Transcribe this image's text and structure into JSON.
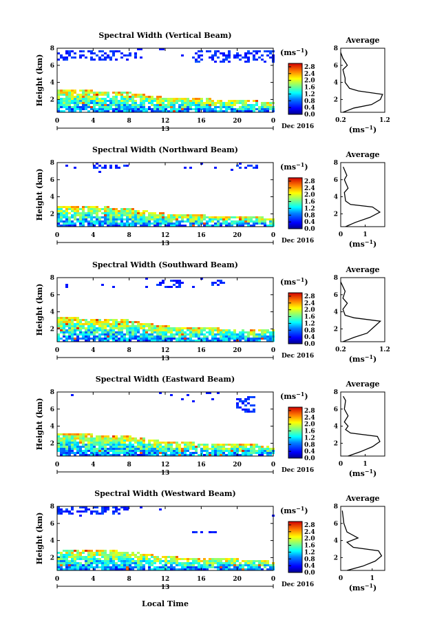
{
  "figure": {
    "time_label": "Local Time",
    "date_label": "Dec 2016",
    "day_label": "13",
    "cbar_unit": "(ms",
    "cbar_unit_exp": "−1",
    "avg_title": "Average",
    "avg_unit": "(ms",
    "avg_unit_exp": "−1"
  },
  "chart_data": [
    {
      "type": "heatmap",
      "title": "Spectral Width (Vertical Beam)",
      "ylabel": "Height (km)",
      "xlabel": "",
      "x_ticks": [
        "0",
        "4",
        "8",
        "12",
        "16",
        "20",
        "0"
      ],
      "y_ticks": [
        "2",
        "4",
        "6",
        "8"
      ],
      "xlim": [
        0,
        24
      ],
      "ylim": [
        0.5,
        8
      ],
      "colorbar": {
        "ticks": [
          "0.0",
          "0.4",
          "0.8",
          "1.2",
          "1.6",
          "2.0",
          "2.4",
          "2.8"
        ],
        "range": [
          0,
          3.0
        ]
      },
      "layer_top": [
        {
          "t": 0,
          "h": 3.0
        },
        {
          "t": 4,
          "h": 3.0
        },
        {
          "t": 8,
          "h": 2.8
        },
        {
          "t": 10,
          "h": 2.5
        },
        {
          "t": 12,
          "h": 2.2
        },
        {
          "t": 16,
          "h": 2.1
        },
        {
          "t": 20,
          "h": 1.9
        },
        {
          "t": 24,
          "h": 1.7
        }
      ],
      "upper_echo": [
        {
          "t0": 0,
          "t1": 9,
          "h0": 6.6,
          "h1": 7.8
        },
        {
          "t0": 15,
          "t1": 24,
          "h0": 6.2,
          "h1": 7.8
        }
      ],
      "average": {
        "title": "Average",
        "xlim": [
          0.2,
          1.2
        ],
        "x_ticks": [
          "0.2",
          "1.2"
        ],
        "y_ticks": [
          "2",
          "4",
          "6",
          "8"
        ],
        "profile": [
          {
            "x": 0.25,
            "y": 0.5
          },
          {
            "x": 0.5,
            "y": 1.0
          },
          {
            "x": 0.9,
            "y": 1.4
          },
          {
            "x": 1.1,
            "y": 2.0
          },
          {
            "x": 1.15,
            "y": 2.6
          },
          {
            "x": 0.6,
            "y": 3.0
          },
          {
            "x": 0.4,
            "y": 3.3
          },
          {
            "x": 0.3,
            "y": 4.0
          },
          {
            "x": 0.3,
            "y": 4.5
          },
          {
            "x": 0.25,
            "y": 5.5
          },
          {
            "x": 0.35,
            "y": 6.0
          },
          {
            "x": 0.25,
            "y": 6.8
          },
          {
            "x": 0.2,
            "y": 7.5
          }
        ]
      }
    },
    {
      "type": "heatmap",
      "title": "Spectral Width (Northward Beam)",
      "ylabel": "Height (km)",
      "xlabel": "",
      "x_ticks": [
        "0",
        "4",
        "8",
        "12",
        "16",
        "20",
        "0"
      ],
      "y_ticks": [
        "2",
        "4",
        "6",
        "8"
      ],
      "xlim": [
        0,
        24
      ],
      "ylim": [
        0.5,
        8
      ],
      "colorbar": {
        "ticks": [
          "0.0",
          "0.4",
          "0.8",
          "1.2",
          "1.6",
          "2.0",
          "2.4",
          "2.8"
        ],
        "range": [
          0,
          3.0
        ]
      },
      "layer_top": [
        {
          "t": 0,
          "h": 3.0
        },
        {
          "t": 4,
          "h": 2.9
        },
        {
          "t": 8,
          "h": 2.6
        },
        {
          "t": 10,
          "h": 2.3
        },
        {
          "t": 12,
          "h": 2.0
        },
        {
          "t": 16,
          "h": 1.8
        },
        {
          "t": 20,
          "h": 1.7
        },
        {
          "t": 24,
          "h": 1.5
        }
      ],
      "upper_echo": [
        {
          "t0": 4,
          "t1": 8,
          "h0": 7.3,
          "h1": 7.8
        },
        {
          "t0": 20,
          "t1": 23,
          "h0": 7.2,
          "h1": 7.8
        }
      ],
      "average": {
        "title": "Average",
        "xlim": [
          0,
          1.8
        ],
        "x_ticks": [
          "0",
          "1"
        ],
        "y_ticks": [
          "2",
          "4",
          "6",
          "8"
        ],
        "profile": [
          {
            "x": 0.2,
            "y": 0.5
          },
          {
            "x": 0.6,
            "y": 1.0
          },
          {
            "x": 1.2,
            "y": 1.6
          },
          {
            "x": 1.6,
            "y": 2.2
          },
          {
            "x": 1.3,
            "y": 2.8
          },
          {
            "x": 0.4,
            "y": 3.1
          },
          {
            "x": 0.2,
            "y": 3.5
          },
          {
            "x": 0.15,
            "y": 4.5
          },
          {
            "x": 0.3,
            "y": 5.0
          },
          {
            "x": 0.15,
            "y": 6.0
          },
          {
            "x": 0.25,
            "y": 6.5
          },
          {
            "x": 0.1,
            "y": 7.5
          }
        ]
      }
    },
    {
      "type": "heatmap",
      "title": "Spectral Width (Southward Beam)",
      "ylabel": "Height (km)",
      "xlabel": "",
      "x_ticks": [
        "0",
        "4",
        "8",
        "12",
        "16",
        "20",
        "0"
      ],
      "y_ticks": [
        "2",
        "4",
        "6",
        "8"
      ],
      "xlim": [
        0,
        24
      ],
      "ylim": [
        0.5,
        8
      ],
      "colorbar": {
        "ticks": [
          "0.0",
          "0.4",
          "0.8",
          "1.2",
          "1.6",
          "2.0",
          "2.4",
          "2.8"
        ],
        "range": [
          0,
          3.0
        ]
      },
      "layer_top": [
        {
          "t": 0,
          "h": 3.3
        },
        {
          "t": 4,
          "h": 3.2
        },
        {
          "t": 8,
          "h": 3.0
        },
        {
          "t": 10,
          "h": 2.6
        },
        {
          "t": 12,
          "h": 2.3
        },
        {
          "t": 16,
          "h": 2.1
        },
        {
          "t": 20,
          "h": 2.0
        },
        {
          "t": 24,
          "h": 1.9
        }
      ],
      "upper_echo": [
        {
          "t0": 11,
          "t1": 14,
          "h0": 6.8,
          "h1": 7.8
        },
        {
          "t0": 17,
          "t1": 19,
          "h0": 7.0,
          "h1": 7.8
        }
      ],
      "average": {
        "title": "Average",
        "xlim": [
          0.2,
          1.2
        ],
        "x_ticks": [
          "0.2",
          "1.2"
        ],
        "y_ticks": [
          "2",
          "4",
          "6",
          "8"
        ],
        "profile": [
          {
            "x": 0.25,
            "y": 0.5
          },
          {
            "x": 0.5,
            "y": 1.0
          },
          {
            "x": 0.8,
            "y": 1.5
          },
          {
            "x": 0.95,
            "y": 2.2
          },
          {
            "x": 1.1,
            "y": 2.9
          },
          {
            "x": 0.5,
            "y": 3.3
          },
          {
            "x": 0.3,
            "y": 3.6
          },
          {
            "x": 0.25,
            "y": 4.3
          },
          {
            "x": 0.35,
            "y": 5.0
          },
          {
            "x": 0.25,
            "y": 5.6
          },
          {
            "x": 0.3,
            "y": 6.4
          },
          {
            "x": 0.2,
            "y": 7.5
          }
        ]
      }
    },
    {
      "type": "heatmap",
      "title": "Spectral Width (Eastward Beam)",
      "ylabel": "Height (km)",
      "xlabel": "",
      "x_ticks": [
        "0",
        "4",
        "8",
        "12",
        "16",
        "20",
        "0"
      ],
      "y_ticks": [
        "2",
        "4",
        "6",
        "8"
      ],
      "xlim": [
        0,
        24
      ],
      "ylim": [
        0.5,
        8
      ],
      "colorbar": {
        "ticks": [
          "0.0",
          "0.4",
          "0.8",
          "1.2",
          "1.6",
          "2.0",
          "2.4",
          "2.8"
        ],
        "range": [
          0,
          3.0
        ]
      },
      "layer_top": [
        {
          "t": 0,
          "h": 3.2
        },
        {
          "t": 4,
          "h": 3.0
        },
        {
          "t": 8,
          "h": 2.8
        },
        {
          "t": 10,
          "h": 2.5
        },
        {
          "t": 12,
          "h": 2.2
        },
        {
          "t": 16,
          "h": 2.0
        },
        {
          "t": 20,
          "h": 1.9
        },
        {
          "t": 24,
          "h": 1.7
        }
      ],
      "upper_echo": [
        {
          "t0": 20,
          "t1": 22,
          "h0": 5.5,
          "h1": 7.5
        }
      ],
      "average": {
        "title": "Average",
        "xlim": [
          0,
          1.8
        ],
        "x_ticks": [
          "0",
          "1"
        ],
        "y_ticks": [
          "2",
          "4",
          "6",
          "8"
        ],
        "profile": [
          {
            "x": 0.3,
            "y": 0.5
          },
          {
            "x": 0.8,
            "y": 1.0
          },
          {
            "x": 1.3,
            "y": 1.6
          },
          {
            "x": 1.6,
            "y": 2.2
          },
          {
            "x": 1.5,
            "y": 2.8
          },
          {
            "x": 0.4,
            "y": 3.2
          },
          {
            "x": 0.2,
            "y": 3.6
          },
          {
            "x": 0.3,
            "y": 4.0
          },
          {
            "x": 0.15,
            "y": 4.5
          },
          {
            "x": 0.3,
            "y": 5.2
          },
          {
            "x": 0.15,
            "y": 6.0
          },
          {
            "x": 0.2,
            "y": 7.0
          },
          {
            "x": 0.1,
            "y": 7.5
          }
        ]
      }
    },
    {
      "type": "heatmap",
      "title": "Spectral Width (Westward Beam)",
      "ylabel": "Height (km)",
      "xlabel": "Local Time",
      "x_ticks": [
        "0",
        "4",
        "8",
        "12",
        "16",
        "20",
        "0"
      ],
      "y_ticks": [
        "2",
        "4",
        "6",
        "8"
      ],
      "xlim": [
        0,
        24
      ],
      "ylim": [
        0.5,
        8
      ],
      "colorbar": {
        "ticks": [
          "0.0",
          "0.4",
          "0.8",
          "1.2",
          "1.6",
          "2.0",
          "2.4",
          "2.8"
        ],
        "range": [
          0,
          3.0
        ]
      },
      "layer_top": [
        {
          "t": 0,
          "h": 3.0
        },
        {
          "t": 4,
          "h": 2.9
        },
        {
          "t": 8,
          "h": 2.7
        },
        {
          "t": 10,
          "h": 2.4
        },
        {
          "t": 12,
          "h": 2.1
        },
        {
          "t": 16,
          "h": 1.9
        },
        {
          "t": 20,
          "h": 1.8
        },
        {
          "t": 24,
          "h": 1.6
        }
      ],
      "upper_echo": [
        {
          "t0": 0,
          "t1": 8,
          "h0": 7.0,
          "h1": 7.9
        },
        {
          "t0": 14,
          "t1": 18,
          "h0": 4.8,
          "h1": 5.2
        }
      ],
      "average": {
        "title": "Average",
        "xlim": [
          0,
          1.4
        ],
        "x_ticks": [
          "0",
          "1"
        ],
        "y_ticks": [
          "2",
          "4",
          "6",
          "8"
        ],
        "profile": [
          {
            "x": 0.2,
            "y": 0.5
          },
          {
            "x": 0.7,
            "y": 1.0
          },
          {
            "x": 1.1,
            "y": 1.6
          },
          {
            "x": 1.3,
            "y": 2.2
          },
          {
            "x": 1.2,
            "y": 2.8
          },
          {
            "x": 0.4,
            "y": 3.2
          },
          {
            "x": 0.2,
            "y": 3.8
          },
          {
            "x": 0.55,
            "y": 4.3
          },
          {
            "x": 0.2,
            "y": 5.0
          },
          {
            "x": 0.1,
            "y": 6.0
          },
          {
            "x": 0.05,
            "y": 7.5
          }
        ]
      }
    }
  ]
}
